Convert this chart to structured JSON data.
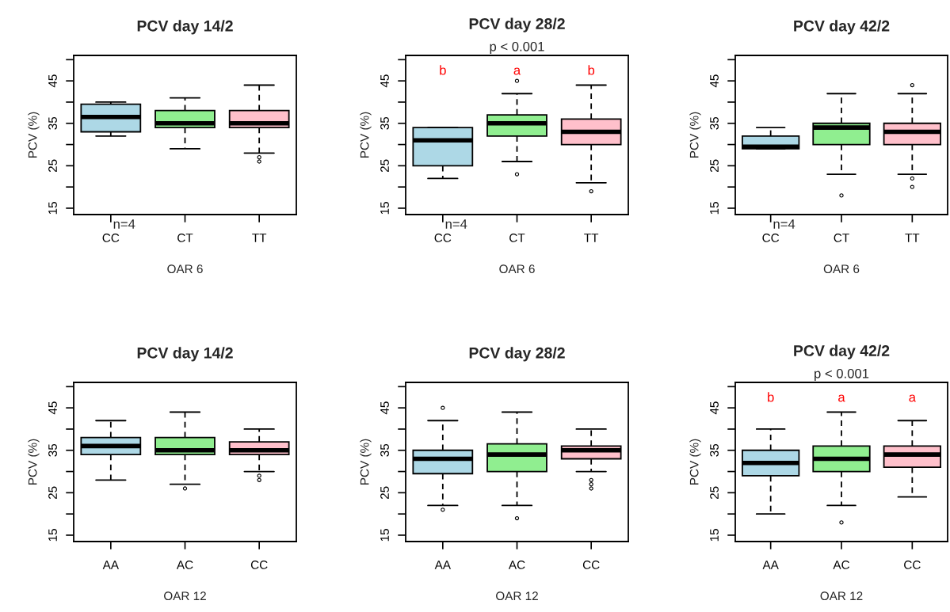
{
  "chart_data": [
    {
      "type": "box",
      "title": "PCV day 14/2",
      "xlabel": "OAR 6",
      "ylabel": "PCV (%)",
      "categories": [
        "CC",
        "CT",
        "TT"
      ],
      "colors": [
        "#add8e6",
        "#90ee90",
        "#ffc0cb"
      ],
      "ylim": [
        13.5,
        51
      ],
      "yticks": [
        15,
        {
          "value": 20,
          "label": null
        },
        25,
        {
          "value": 30,
          "label": null
        },
        35,
        {
          "value": 40,
          "label": null
        },
        45,
        {
          "value": 50,
          "label": null
        }
      ],
      "boxes": [
        {
          "low": 32,
          "q1": 33,
          "median": 36.5,
          "q3": 39.5,
          "high": 40
        },
        {
          "low": 29,
          "q1": 34,
          "median": 35,
          "q3": 38,
          "high": 41
        },
        {
          "low": 28,
          "q1": 34,
          "median": 35,
          "q3": 38,
          "high": 44,
          "outliers": [
            27,
            26
          ]
        }
      ],
      "annotations": [
        "n=4"
      ]
    },
    {
      "type": "box",
      "title": "PCV day 28/2",
      "subtitle": "p < 0.001",
      "xlabel": "OAR 6",
      "ylabel": "PCV (%)",
      "categories": [
        "CC",
        "CT",
        "TT"
      ],
      "colors": [
        "#add8e6",
        "#90ee90",
        "#ffc0cb"
      ],
      "ylim": [
        13.5,
        51
      ],
      "yticks": [
        15,
        {
          "value": 20,
          "label": null
        },
        25,
        {
          "value": 30,
          "label": null
        },
        35,
        {
          "value": 40,
          "label": null
        },
        45,
        {
          "value": 50,
          "label": null
        }
      ],
      "boxes": [
        {
          "low": 22,
          "q1": 25,
          "median": 31,
          "q3": 34,
          "high": 34
        },
        {
          "low": 26,
          "q1": 32,
          "median": 35,
          "q3": 37,
          "high": 42,
          "outliers": [
            45,
            23
          ]
        },
        {
          "low": 21,
          "q1": 30,
          "median": 33,
          "q3": 36,
          "high": 44,
          "outliers": [
            19
          ]
        }
      ],
      "annotations": [
        "n=4",
        "b",
        "a",
        "b"
      ]
    },
    {
      "type": "box",
      "title": "PCV day 42/2",
      "xlabel": "OAR 6",
      "ylabel": "PCV (%)",
      "categories": [
        "CC",
        "CT",
        "TT"
      ],
      "colors": [
        "#add8e6",
        "#90ee90",
        "#ffc0cb"
      ],
      "ylim": [
        13.5,
        51
      ],
      "yticks": [
        15,
        {
          "value": 20,
          "label": null
        },
        25,
        {
          "value": 30,
          "label": null
        },
        35,
        {
          "value": 40,
          "label": null
        },
        45,
        {
          "value": 50,
          "label": null
        }
      ],
      "boxes": [
        {
          "low": 29,
          "q1": 29,
          "median": 29.5,
          "q3": 32,
          "high": 34
        },
        {
          "low": 23,
          "q1": 30,
          "median": 34,
          "q3": 35,
          "high": 42,
          "outliers": [
            18
          ]
        },
        {
          "low": 23,
          "q1": 30,
          "median": 33,
          "q3": 35,
          "high": 42,
          "outliers": [
            44,
            22,
            20
          ]
        }
      ],
      "annotations": [
        "n=4"
      ]
    },
    {
      "type": "box",
      "title": "PCV day 14/2",
      "xlabel": "OAR 12",
      "ylabel": "PCV (%)",
      "categories": [
        "AA",
        "AC",
        "CC"
      ],
      "colors": [
        "#add8e6",
        "#90ee90",
        "#ffc0cb"
      ],
      "ylim": [
        13.5,
        51
      ],
      "yticks": [
        15,
        {
          "value": 20,
          "label": null
        },
        25,
        {
          "value": 30,
          "label": null
        },
        35,
        {
          "value": 40,
          "label": null
        },
        45,
        {
          "value": 50,
          "label": null
        }
      ],
      "boxes": [
        {
          "low": 28,
          "q1": 34,
          "median": 36,
          "q3": 38,
          "high": 42
        },
        {
          "low": 27,
          "q1": 34,
          "median": 35,
          "q3": 38,
          "high": 44,
          "outliers": [
            26
          ]
        },
        {
          "low": 30,
          "q1": 34,
          "median": 35,
          "q3": 37,
          "high": 40,
          "outliers": [
            29,
            28
          ]
        }
      ]
    },
    {
      "type": "box",
      "title": "PCV day 28/2",
      "xlabel": "OAR 12",
      "ylabel": "PCV (%)",
      "categories": [
        "AA",
        "AC",
        "CC"
      ],
      "colors": [
        "#add8e6",
        "#90ee90",
        "#ffc0cb"
      ],
      "ylim": [
        13.5,
        51
      ],
      "yticks": [
        15,
        {
          "value": 20,
          "label": null
        },
        25,
        {
          "value": 30,
          "label": null
        },
        35,
        {
          "value": 40,
          "label": null
        },
        45,
        {
          "value": 50,
          "label": null
        }
      ],
      "boxes": [
        {
          "low": 22,
          "q1": 29.5,
          "median": 33,
          "q3": 35,
          "high": 42,
          "outliers": [
            45,
            21
          ]
        },
        {
          "low": 22,
          "q1": 30,
          "median": 34,
          "q3": 36.5,
          "high": 44,
          "outliers": [
            19
          ]
        },
        {
          "low": 30,
          "q1": 33,
          "median": 35,
          "q3": 36,
          "high": 40,
          "outliers": [
            28,
            27,
            26
          ]
        }
      ]
    },
    {
      "type": "box",
      "title": "PCV day 42/2",
      "subtitle": "p < 0.001",
      "xlabel": "OAR 12",
      "ylabel": "PCV (%)",
      "categories": [
        "AA",
        "AC",
        "CC"
      ],
      "colors": [
        "#add8e6",
        "#90ee90",
        "#ffc0cb"
      ],
      "ylim": [
        13.5,
        51
      ],
      "yticks": [
        15,
        {
          "value": 20,
          "label": null
        },
        25,
        {
          "value": 30,
          "label": null
        },
        35,
        {
          "value": 40,
          "label": null
        },
        45,
        {
          "value": 50,
          "label": null
        }
      ],
      "boxes": [
        {
          "low": 20,
          "q1": 29,
          "median": 32,
          "q3": 35,
          "high": 40
        },
        {
          "low": 22,
          "q1": 30,
          "median": 33,
          "q3": 36,
          "high": 44,
          "outliers": [
            18
          ]
        },
        {
          "low": 24,
          "q1": 31,
          "median": 34,
          "q3": 36,
          "high": 42
        }
      ],
      "annotations": [
        "b",
        "a",
        "a"
      ]
    }
  ]
}
